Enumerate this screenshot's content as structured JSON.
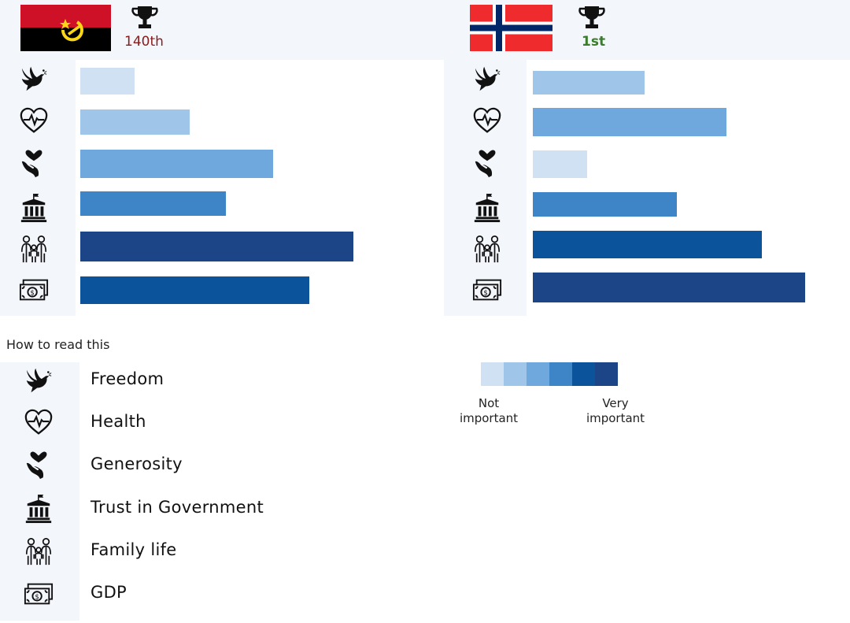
{
  "countries": [
    {
      "name": "Angola",
      "flag_icon": "angola-flag",
      "rank_label": "140th",
      "rank_color": "#8b1a1a"
    },
    {
      "name": "Norway",
      "flag_icon": "norway-flag",
      "rank_label": "1st",
      "rank_color": "#3a7d2a"
    }
  ],
  "chart_data": [
    {
      "type": "bar",
      "orientation": "horizontal",
      "country": "Angola",
      "categories": [
        "Freedom",
        "Health",
        "Generosity",
        "Trust in Government",
        "Family life",
        "GDP"
      ],
      "values": [
        0.15,
        0.3,
        0.53,
        0.4,
        0.75,
        0.63
      ],
      "importance_level": [
        1,
        2,
        3,
        4,
        6,
        5
      ]
    },
    {
      "type": "bar",
      "orientation": "horizontal",
      "country": "Norway",
      "categories": [
        "Freedom",
        "Health",
        "Generosity",
        "Trust in Government",
        "Family life",
        "GDP"
      ],
      "values": [
        0.41,
        0.71,
        0.2,
        0.53,
        0.84,
        1.0
      ],
      "importance_level": [
        2,
        3,
        1,
        4,
        5,
        6
      ]
    }
  ],
  "legend": {
    "title": "How to read this",
    "items": [
      {
        "icon": "dove-icon",
        "label": "Freedom"
      },
      {
        "icon": "heartbeat-icon",
        "label": "Health"
      },
      {
        "icon": "heart-hand-icon",
        "label": "Generosity"
      },
      {
        "icon": "government-building-icon",
        "label": "Trust in Government"
      },
      {
        "icon": "family-icon",
        "label": "Family life"
      },
      {
        "icon": "money-icon",
        "label": "GDP"
      }
    ],
    "scale_colors": [
      "#cfe1f3",
      "#9fc5e8",
      "#6fa8dc",
      "#3d85c6",
      "#0b539a",
      "#1c4587"
    ],
    "scale_low_label": "Not important",
    "scale_high_label": "Very important"
  }
}
